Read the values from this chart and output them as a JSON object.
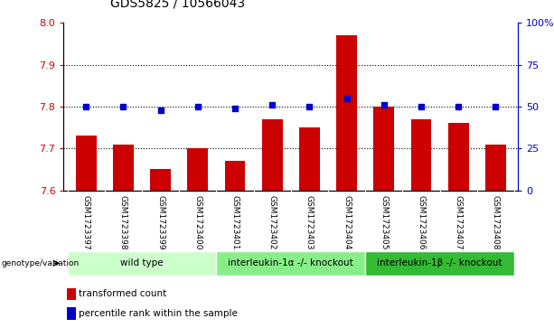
{
  "title": "GDS5825 / 10566043",
  "samples": [
    "GSM1723397",
    "GSM1723398",
    "GSM1723399",
    "GSM1723400",
    "GSM1723401",
    "GSM1723402",
    "GSM1723403",
    "GSM1723404",
    "GSM1723405",
    "GSM1723406",
    "GSM1723407",
    "GSM1723408"
  ],
  "red_values": [
    7.73,
    7.71,
    7.65,
    7.7,
    7.67,
    7.77,
    7.75,
    7.97,
    7.8,
    7.77,
    7.76,
    7.71
  ],
  "blue_values": [
    50,
    50,
    48,
    50,
    49,
    51,
    50,
    55,
    51,
    50,
    50,
    50
  ],
  "ylim_left": [
    7.6,
    8.0
  ],
  "ylim_right": [
    0,
    100
  ],
  "yticks_left": [
    7.6,
    7.7,
    7.8,
    7.9,
    8.0
  ],
  "yticks_right": [
    0,
    25,
    50,
    75,
    100
  ],
  "ytick_labels_right": [
    "0",
    "25",
    "50",
    "75",
    "100%"
  ],
  "bar_color": "#cc0000",
  "dot_color": "#0000cc",
  "groups": [
    {
      "label": "wild type",
      "start": 0,
      "end": 3,
      "color": "#ccffcc"
    },
    {
      "label": "interleukin-1α -/- knockout",
      "start": 4,
      "end": 7,
      "color": "#88ee88"
    },
    {
      "label": "interleukin-1β -/- knockout",
      "start": 8,
      "end": 11,
      "color": "#33bb33"
    }
  ],
  "legend_items": [
    {
      "label": "transformed count",
      "color": "#cc0000"
    },
    {
      "label": "percentile rank within the sample",
      "color": "#0000cc"
    }
  ],
  "genotype_label": "genotype/variation",
  "subplot_bg": "#c8c8c8"
}
